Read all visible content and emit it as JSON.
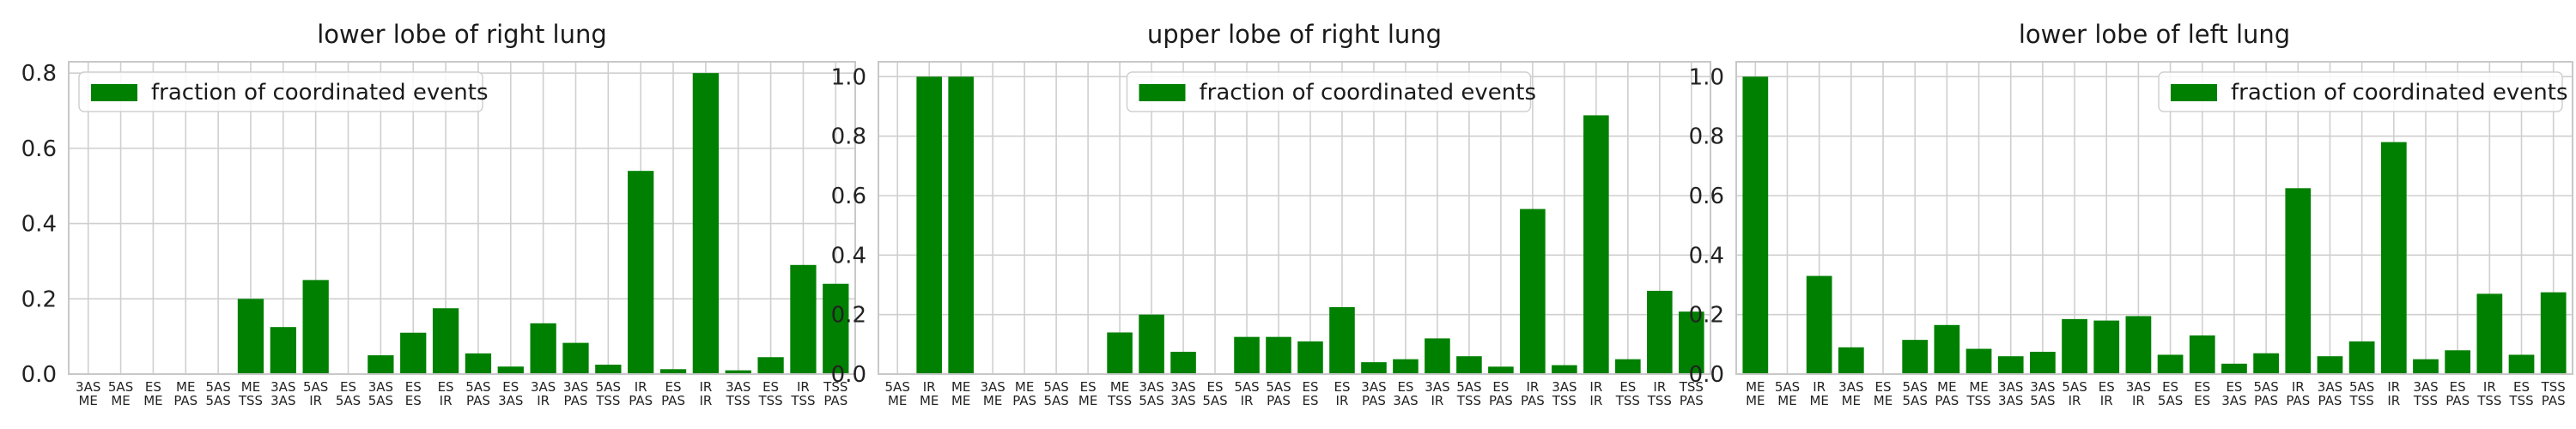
{
  "figure": {
    "bar_color": "#008000",
    "grid": true
  },
  "chart_data": [
    {
      "type": "bar",
      "title": "lower lobe of right lung",
      "xlabel": "",
      "ylabel": "",
      "ylim": [
        0,
        0.83
      ],
      "yticks": [
        0.0,
        0.2,
        0.4,
        0.6,
        0.8
      ],
      "ytick_labels": [
        "0.0",
        "0.2",
        "0.4",
        "0.6",
        "0.8"
      ],
      "legend": {
        "position": "upper-left",
        "entries": [
          "fraction of coordinated events"
        ]
      },
      "categories": [
        [
          "3AS",
          "ME"
        ],
        [
          "5AS",
          "ME"
        ],
        [
          "ES",
          "ME"
        ],
        [
          "ME",
          "PAS"
        ],
        [
          "5AS",
          "5AS"
        ],
        [
          "ME",
          "TSS"
        ],
        [
          "3AS",
          "3AS"
        ],
        [
          "5AS",
          "IR"
        ],
        [
          "ES",
          "5AS"
        ],
        [
          "3AS",
          "5AS"
        ],
        [
          "ES",
          "ES"
        ],
        [
          "ES",
          "IR"
        ],
        [
          "5AS",
          "PAS"
        ],
        [
          "ES",
          "3AS"
        ],
        [
          "3AS",
          "IR"
        ],
        [
          "3AS",
          "PAS"
        ],
        [
          "5AS",
          "TSS"
        ],
        [
          "IR",
          "PAS"
        ],
        [
          "ES",
          "PAS"
        ],
        [
          "IR",
          "IR"
        ],
        [
          "3AS",
          "TSS"
        ],
        [
          "ES",
          "TSS"
        ],
        [
          "IR",
          "TSS"
        ],
        [
          "TSS",
          "PAS"
        ]
      ],
      "series": [
        {
          "name": "fraction of coordinated events",
          "values": [
            0,
            0,
            0,
            0,
            0,
            0.2,
            0.125,
            0.25,
            0,
            0.05,
            0.11,
            0.175,
            0.055,
            0.02,
            0.135,
            0.083,
            0.025,
            0.54,
            0.013,
            0.8,
            0.01,
            0.045,
            0.29,
            0.24
          ]
        }
      ]
    },
    {
      "type": "bar",
      "title": "upper lobe of right lung",
      "xlabel": "",
      "ylabel": "",
      "ylim": [
        0,
        1.05
      ],
      "yticks": [
        0.0,
        0.2,
        0.4,
        0.6,
        0.8,
        1.0
      ],
      "ytick_labels": [
        "0.0",
        "0.2",
        "0.4",
        "0.6",
        "0.8",
        "1.0"
      ],
      "legend": {
        "position": "upper-center",
        "entries": [
          "fraction of coordinated events"
        ]
      },
      "categories": [
        [
          "5AS",
          "ME"
        ],
        [
          "IR",
          "ME"
        ],
        [
          "ME",
          "ME"
        ],
        [
          "3AS",
          "ME"
        ],
        [
          "ME",
          "PAS"
        ],
        [
          "5AS",
          "5AS"
        ],
        [
          "ES",
          "ME"
        ],
        [
          "ME",
          "TSS"
        ],
        [
          "3AS",
          "5AS"
        ],
        [
          "3AS",
          "3AS"
        ],
        [
          "ES",
          "5AS"
        ],
        [
          "5AS",
          "IR"
        ],
        [
          "5AS",
          "PAS"
        ],
        [
          "ES",
          "ES"
        ],
        [
          "ES",
          "IR"
        ],
        [
          "3AS",
          "PAS"
        ],
        [
          "ES",
          "3AS"
        ],
        [
          "3AS",
          "IR"
        ],
        [
          "5AS",
          "TSS"
        ],
        [
          "ES",
          "PAS"
        ],
        [
          "IR",
          "PAS"
        ],
        [
          "3AS",
          "TSS"
        ],
        [
          "IR",
          "IR"
        ],
        [
          "ES",
          "TSS"
        ],
        [
          "IR",
          "TSS"
        ],
        [
          "TSS",
          "PAS"
        ]
      ],
      "series": [
        {
          "name": "fraction of coordinated events",
          "values": [
            0,
            1.0,
            1.0,
            0,
            0,
            0,
            0,
            0.14,
            0.2,
            0.075,
            0,
            0.125,
            0.125,
            0.11,
            0.225,
            0.04,
            0.05,
            0.12,
            0.06,
            0.025,
            0.555,
            0.03,
            0.87,
            0.05,
            0.28,
            0.21
          ]
        }
      ]
    },
    {
      "type": "bar",
      "title": "lower lobe of left lung",
      "xlabel": "",
      "ylabel": "",
      "ylim": [
        0,
        1.05
      ],
      "yticks": [
        0.0,
        0.2,
        0.4,
        0.6,
        0.8,
        1.0
      ],
      "ytick_labels": [
        "0.0",
        "0.2",
        "0.4",
        "0.6",
        "0.8",
        "1.0"
      ],
      "legend": {
        "position": "upper-right",
        "entries": [
          "fraction of coordinated events"
        ]
      },
      "categories": [
        [
          "ME",
          "ME"
        ],
        [
          "5AS",
          "ME"
        ],
        [
          "IR",
          "ME"
        ],
        [
          "3AS",
          "ME"
        ],
        [
          "ES",
          "ME"
        ],
        [
          "5AS",
          "5AS"
        ],
        [
          "ME",
          "PAS"
        ],
        [
          "ME",
          "TSS"
        ],
        [
          "3AS",
          "3AS"
        ],
        [
          "3AS",
          "5AS"
        ],
        [
          "5AS",
          "IR"
        ],
        [
          "ES",
          "IR"
        ],
        [
          "3AS",
          "IR"
        ],
        [
          "ES",
          "5AS"
        ],
        [
          "ES",
          "ES"
        ],
        [
          "ES",
          "3AS"
        ],
        [
          "5AS",
          "PAS"
        ],
        [
          "IR",
          "PAS"
        ],
        [
          "3AS",
          "PAS"
        ],
        [
          "5AS",
          "TSS"
        ],
        [
          "IR",
          "IR"
        ],
        [
          "3AS",
          "TSS"
        ],
        [
          "ES",
          "PAS"
        ],
        [
          "IR",
          "TSS"
        ],
        [
          "ES",
          "TSS"
        ],
        [
          "TSS",
          "PAS"
        ]
      ],
      "series": [
        {
          "name": "fraction of coordinated events",
          "values": [
            1.0,
            0,
            0.33,
            0.09,
            0,
            0.115,
            0.165,
            0.085,
            0.06,
            0.075,
            0.185,
            0.18,
            0.195,
            0.065,
            0.13,
            0.035,
            0.07,
            0.625,
            0.06,
            0.11,
            0.78,
            0.05,
            0.08,
            0.27,
            0.065,
            0.275
          ]
        }
      ]
    }
  ]
}
